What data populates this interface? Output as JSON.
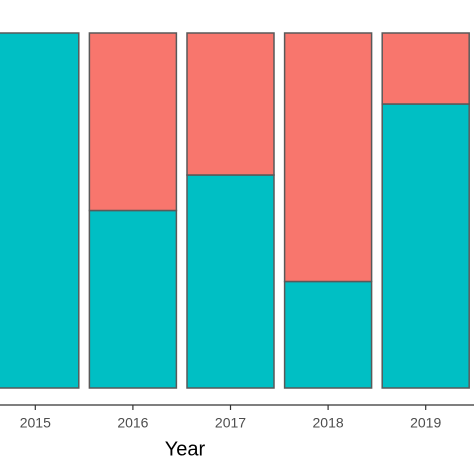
{
  "chart_data": {
    "type": "stacked-bar",
    "x_label": "Year",
    "categories": [
      "2015",
      "2016",
      "2017",
      "2018",
      "2019"
    ],
    "series": [
      {
        "color": "#00BFC4",
        "values": [
          1.0,
          0.5,
          0.6,
          0.3,
          0.8
        ]
      },
      {
        "color": "#F8766D",
        "values": [
          0,
          0.5,
          0.4,
          0.7,
          0.2
        ]
      }
    ],
    "ylim": [
      0,
      1
    ]
  }
}
